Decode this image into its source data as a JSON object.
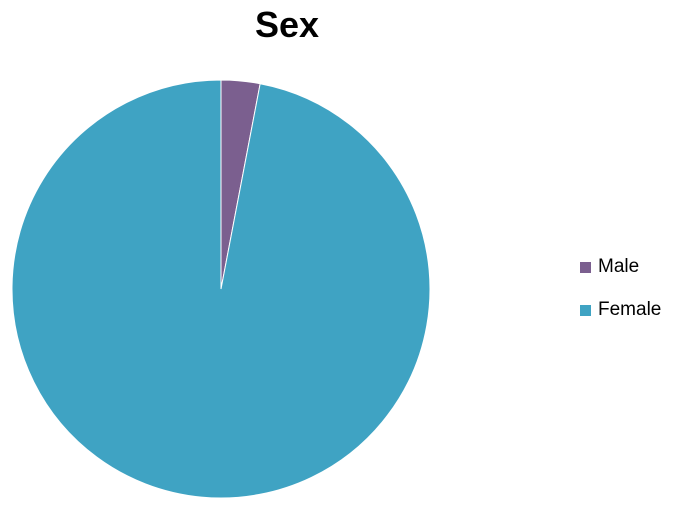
{
  "chart_data": {
    "type": "pie",
    "title": "Sex",
    "categories": [
      "Male",
      "Female"
    ],
    "values": [
      3,
      97
    ],
    "colors": [
      "#7b5f8f",
      "#3fa3c3"
    ],
    "legend_position": "right"
  }
}
